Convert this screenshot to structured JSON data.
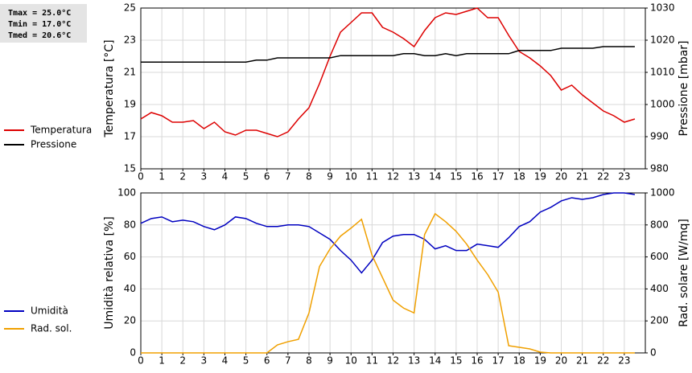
{
  "annotations": [
    "Tmax = 25.0°C",
    "Tmin = 17.0°C",
    "Tmed = 20.6°C"
  ],
  "chart_data": [
    {
      "type": "line",
      "grid": true,
      "ylabel": "Temperatura [°C]",
      "y2label": "Pressione [mbar]",
      "x": [
        0,
        0.5,
        1,
        1.5,
        2,
        2.5,
        3,
        3.5,
        4,
        4.5,
        5,
        5.5,
        6,
        6.5,
        7,
        7.5,
        8,
        8.5,
        9,
        9.5,
        10,
        10.5,
        11,
        11.5,
        12,
        12.5,
        13,
        13.5,
        14,
        14.5,
        15,
        15.5,
        16,
        16.5,
        17,
        17.5,
        18,
        18.5,
        19,
        19.5,
        20,
        20.5,
        21,
        21.5,
        22,
        22.5,
        23,
        23.5
      ],
      "xlim": [
        0,
        24
      ],
      "xticks": [
        0,
        1,
        2,
        3,
        4,
        5,
        6,
        7,
        8,
        9,
        10,
        11,
        12,
        13,
        14,
        15,
        16,
        17,
        18,
        19,
        20,
        21,
        22,
        23
      ],
      "ylim": [
        15,
        25
      ],
      "yticks": [
        15,
        17,
        19,
        21,
        23,
        25
      ],
      "y2lim": [
        980,
        1030
      ],
      "y2ticks": [
        980,
        990,
        1000,
        1010,
        1020,
        1030
      ],
      "series": [
        {
          "name": "Temperatura",
          "color": "#dd0000",
          "axis": "y",
          "values": [
            18.1,
            18.5,
            18.3,
            17.9,
            17.9,
            18.0,
            17.5,
            17.9,
            17.3,
            17.1,
            17.4,
            17.4,
            17.2,
            17.0,
            17.3,
            18.1,
            18.8,
            20.3,
            22.0,
            23.5,
            24.1,
            24.7,
            24.7,
            23.8,
            23.5,
            23.1,
            22.6,
            23.6,
            24.4,
            24.7,
            24.6,
            24.8,
            25.0,
            24.4,
            24.4,
            23.3,
            22.3,
            21.9,
            21.4,
            20.8,
            19.9,
            20.2,
            19.6,
            19.1,
            18.6,
            18.3,
            17.9,
            18.1
          ]
        },
        {
          "name": "Pressione",
          "color": "#000000",
          "axis": "y2",
          "values": [
            1013.2,
            1013.2,
            1013.2,
            1013.2,
            1013.2,
            1013.2,
            1013.2,
            1013.2,
            1013.2,
            1013.2,
            1013.2,
            1013.8,
            1013.8,
            1014.5,
            1014.5,
            1014.5,
            1014.5,
            1014.5,
            1014.5,
            1015.2,
            1015.2,
            1015.2,
            1015.2,
            1015.2,
            1015.2,
            1015.8,
            1015.8,
            1015.2,
            1015.2,
            1015.8,
            1015.2,
            1015.8,
            1015.8,
            1015.8,
            1015.8,
            1015.8,
            1016.8,
            1016.8,
            1016.8,
            1016.8,
            1017.5,
            1017.5,
            1017.5,
            1017.5,
            1018.0,
            1018.0,
            1018.0,
            1018.0
          ]
        }
      ]
    },
    {
      "type": "line",
      "grid": true,
      "ylabel": "Umidità relativa [%]",
      "y2label": "Rad. solare [W/mq]",
      "x": [
        0,
        0.5,
        1,
        1.5,
        2,
        2.5,
        3,
        3.5,
        4,
        4.5,
        5,
        5.5,
        6,
        6.5,
        7,
        7.5,
        8,
        8.5,
        9,
        9.5,
        10,
        10.5,
        11,
        11.5,
        12,
        12.5,
        13,
        13.5,
        14,
        14.5,
        15,
        15.5,
        16,
        16.5,
        17,
        17.5,
        18,
        18.5,
        19,
        19.5,
        20,
        20.5,
        21,
        21.5,
        22,
        22.5,
        23,
        23.5
      ],
      "xlim": [
        0,
        24
      ],
      "xticks": [
        0,
        1,
        2,
        3,
        4,
        5,
        6,
        7,
        8,
        9,
        10,
        11,
        12,
        13,
        14,
        15,
        16,
        17,
        18,
        19,
        20,
        21,
        22,
        23
      ],
      "ylim": [
        0,
        100
      ],
      "yticks": [
        0,
        20,
        40,
        60,
        80,
        100
      ],
      "y2lim": [
        0,
        1000
      ],
      "y2ticks": [
        0,
        200,
        400,
        600,
        800,
        1000
      ],
      "series": [
        {
          "name": "Umidità",
          "color": "#0000c0",
          "axis": "y",
          "values": [
            81,
            84,
            85,
            82,
            83,
            82,
            79,
            77,
            80,
            85,
            84,
            81,
            79,
            79,
            80,
            80,
            79,
            75,
            71,
            64,
            58,
            50,
            58,
            69,
            73,
            74,
            74,
            71,
            65,
            67,
            64,
            64,
            68,
            67,
            66,
            72,
            79,
            82,
            88,
            91,
            95,
            97,
            96,
            97,
            99,
            100,
            100,
            99
          ]
        },
        {
          "name": "Rad. sol.",
          "color": "#f0a000",
          "axis": "y2",
          "values": [
            0,
            0,
            0,
            0,
            0,
            0,
            0,
            0,
            0,
            0,
            0,
            0,
            0,
            50,
            70,
            85,
            250,
            540,
            650,
            730,
            780,
            835,
            610,
            470,
            330,
            280,
            250,
            740,
            870,
            820,
            760,
            680,
            580,
            490,
            380,
            45,
            35,
            25,
            5,
            0,
            0,
            0,
            0,
            0,
            0,
            0,
            0,
            0
          ]
        }
      ]
    }
  ]
}
